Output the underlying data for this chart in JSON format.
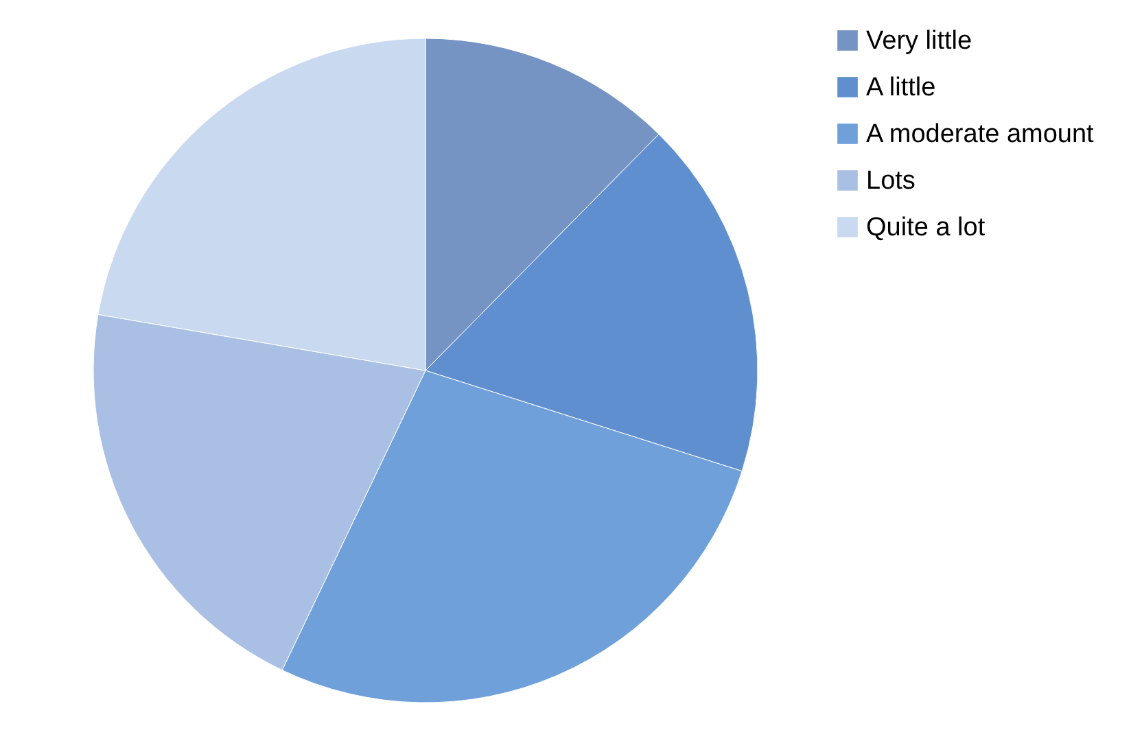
{
  "chart_data": {
    "type": "pie",
    "categories": [
      "Very little",
      "A little",
      "A moderate amount",
      "Lots",
      "Quite a lot"
    ],
    "values": [
      12.4,
      17.5,
      27.2,
      20.6,
      22.3
    ],
    "colors": [
      "#7594c4",
      "#5f8fcf",
      "#6fa0da",
      "#a9c0e4",
      "#c9d9ef"
    ],
    "legend": "right"
  }
}
